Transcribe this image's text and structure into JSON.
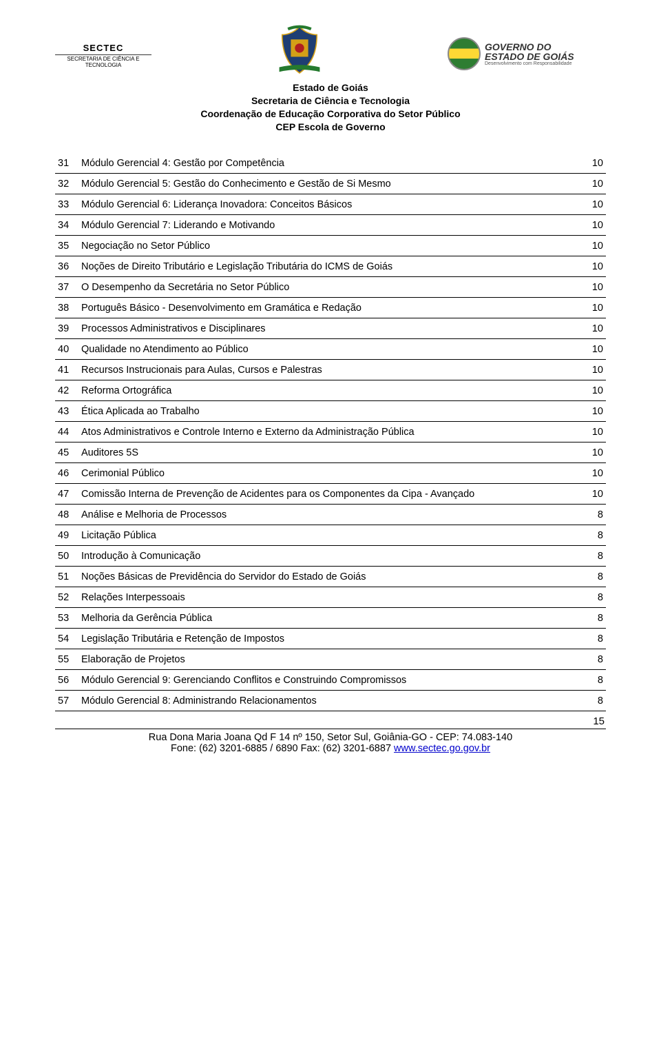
{
  "header": {
    "sectec_label": "SECTEC",
    "sectec_sub": "SECRETARIA DE CIÊNCIA E TECNOLOGIA",
    "gov_l1": "GOVERNO DO",
    "gov_l2": "ESTADO DE GOIÁS",
    "gov_l3": "Desenvolvimento com Responsabilidade",
    "title_l1": "Estado de Goiás",
    "title_l2": "Secretaria de Ciência e Tecnologia",
    "title_l3": "Coordenação de Educação Corporativa do Setor Público",
    "title_l4": "CEP Escola de Governo"
  },
  "table": {
    "rows": [
      {
        "n": "31",
        "label": "Módulo Gerencial 4: Gestão por Competência",
        "v": "10"
      },
      {
        "n": "32",
        "label": "Módulo Gerencial 5: Gestão do Conhecimento e Gestão de Si Mesmo",
        "v": "10"
      },
      {
        "n": "33",
        "label": "Módulo Gerencial 6: Liderança Inovadora: Conceitos Básicos",
        "v": "10"
      },
      {
        "n": "34",
        "label": "Módulo Gerencial 7: Liderando e Motivando",
        "v": "10"
      },
      {
        "n": "35",
        "label": "Negociação no Setor Público",
        "v": "10"
      },
      {
        "n": "36",
        "label": "Noções de Direito Tributário e Legislação Tributária do ICMS de Goiás",
        "v": "10"
      },
      {
        "n": "37",
        "label": "O Desempenho da Secretária no Setor Público",
        "v": "10"
      },
      {
        "n": "38",
        "label": "Português Básico - Desenvolvimento em Gramática e Redação",
        "v": "10"
      },
      {
        "n": "39",
        "label": "Processos Administrativos e Disciplinares",
        "v": "10"
      },
      {
        "n": "40",
        "label": "Qualidade no Atendimento ao Público",
        "v": "10"
      },
      {
        "n": "41",
        "label": "Recursos Instrucionais para Aulas, Cursos e Palestras",
        "v": "10"
      },
      {
        "n": "42",
        "label": "Reforma Ortográfica",
        "v": "10"
      },
      {
        "n": "43",
        "label": "Ética Aplicada ao Trabalho",
        "v": "10"
      },
      {
        "n": "44",
        "label": "Atos Administrativos e Controle Interno e Externo da Administração Pública",
        "v": "10"
      },
      {
        "n": "45",
        "label": "Auditores 5S",
        "v": "10"
      },
      {
        "n": "46",
        "label": "Cerimonial Público",
        "v": "10"
      },
      {
        "n": "47",
        "label": "Comissão Interna de Prevenção de Acidentes para os Componentes da Cipa - Avançado",
        "v": "10"
      },
      {
        "n": "48",
        "label": "Análise e Melhoria de Processos",
        "v": "8"
      },
      {
        "n": "49",
        "label": "Licitação Pública",
        "v": "8"
      },
      {
        "n": "50",
        "label": "Introdução à Comunicação",
        "v": "8"
      },
      {
        "n": "51",
        "label": "Noções Básicas de Previdência do Servidor do Estado de Goiás",
        "v": "8"
      },
      {
        "n": "52",
        "label": "Relações Interpessoais",
        "v": "8"
      },
      {
        "n": "53",
        "label": "Melhoria da Gerência Pública",
        "v": "8"
      },
      {
        "n": "54",
        "label": "Legislação Tributária e Retenção de Impostos",
        "v": "8"
      },
      {
        "n": "55",
        "label": "Elaboração de Projetos",
        "v": "8"
      },
      {
        "n": "56",
        "label": "Módulo Gerencial 9: Gerenciando Conflitos e Construindo Compromissos",
        "v": "8"
      },
      {
        "n": "57",
        "label": "Módulo Gerencial 8: Administrando Relacionamentos",
        "v": "8"
      }
    ]
  },
  "page_number": "15",
  "footer": {
    "line1": "Rua Dona Maria Joana Qd F 14 nº 150, Setor Sul, Goiânia-GO - CEP: 74.083-140",
    "line2a": "Fone: (62) 3201-6885 / 6890  Fax: (62) 3201-6887   ",
    "link": "www.sectec.go.gov.br"
  },
  "colors": {
    "text": "#000000",
    "link": "#0000cc",
    "border": "#000000",
    "background": "#ffffff"
  },
  "crest_svg": {
    "ribbon": "#257a2e",
    "gold": "#d4a017",
    "red": "#b02020",
    "blue": "#1f3e73"
  }
}
